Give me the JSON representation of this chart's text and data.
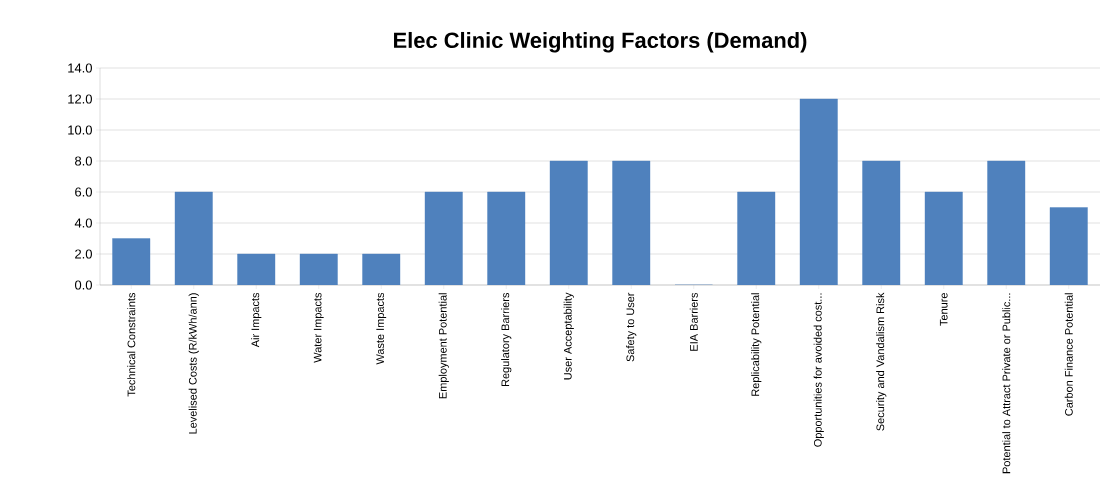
{
  "chart_data": {
    "type": "bar",
    "title": "Elec Clinic Weighting Factors (Demand)",
    "categories": [
      "Technical Constraints",
      "Levelised Costs (R/kWh/ann)",
      "Air Impacts",
      "Water Impacts",
      "Waste Impacts",
      "Employment Potential",
      "Regulatory Barriers",
      "User Acceptability",
      "Safety to User",
      "EIA Barriers",
      "Replicability Potential",
      "Opportunities for avoided cost...",
      "Security and Vandalism Risk",
      "Tenure",
      "Potential to Attract Private or Public...",
      "Carbon Finance Potential"
    ],
    "values": [
      3,
      6,
      2,
      2,
      2,
      6,
      6,
      8,
      8,
      0,
      6,
      12,
      8,
      6,
      8,
      5
    ],
    "color": "#4f81bd",
    "ylim": [
      0,
      14
    ],
    "yticks": [
      {
        "value": 0,
        "label": "0.0"
      },
      {
        "value": 2,
        "label": "2.0"
      },
      {
        "value": 4,
        "label": "4.0"
      },
      {
        "value": 6,
        "label": "6.0"
      },
      {
        "value": 8,
        "label": "8.0"
      },
      {
        "value": 10,
        "label": "10.0"
      },
      {
        "value": 12,
        "label": "12.0"
      },
      {
        "value": 14,
        "label": "14.0"
      }
    ],
    "grid": "y"
  }
}
